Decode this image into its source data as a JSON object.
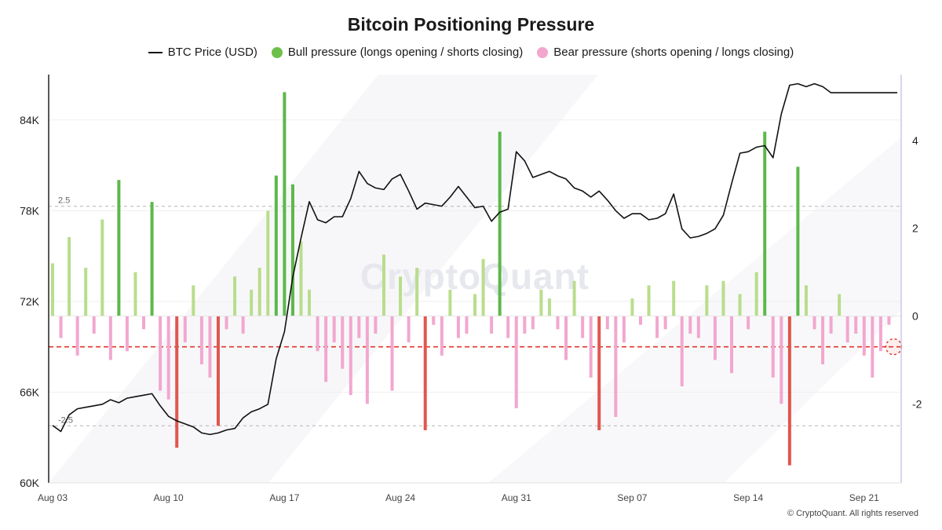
{
  "chart_data": {
    "type": "line+bar",
    "title": "Bitcoin Positioning Pressure",
    "legend": [
      {
        "name": "BTC Price (USD)",
        "kind": "line",
        "color": "#111111"
      },
      {
        "name": "Bull pressure (longs opening / shorts closing)",
        "kind": "dot",
        "color": "#6cc04a"
      },
      {
        "name": "Bear pressure (shorts opening / longs closing)",
        "kind": "dot",
        "color": "#f2a7cf"
      }
    ],
    "x_ticks": [
      "Aug 03",
      "Aug 10",
      "Aug 17",
      "Aug 24",
      "Aug 31",
      "Sep 07",
      "Sep 14",
      "Sep 21"
    ],
    "x_range": [
      0,
      51
    ],
    "y_left": {
      "ticks": [
        "60K",
        "66K",
        "72K",
        "78K",
        "84K"
      ],
      "values": [
        60000,
        66000,
        72000,
        78000,
        84000
      ],
      "range": [
        60000,
        87000
      ]
    },
    "y_right": {
      "ticks": [
        "-2",
        "0",
        "2",
        "4"
      ],
      "values": [
        -2,
        0,
        2,
        4
      ],
      "range": [
        -3.8,
        5.5
      ]
    },
    "reference_lines": [
      {
        "value": 2.5,
        "label": "2.5"
      },
      {
        "value": -2.5,
        "label": "-2.5"
      },
      {
        "value": -0.7,
        "label": ""
      }
    ],
    "price": {
      "name": "BTC Price (USD)",
      "x": [
        0,
        0.5,
        1,
        1.5,
        2,
        2.5,
        3,
        3.5,
        4,
        4.5,
        5,
        5.5,
        6,
        6.5,
        7,
        7.5,
        8,
        8.5,
        9,
        9.5,
        10,
        10.5,
        11,
        11.5,
        12,
        12.5,
        13,
        13.5,
        14,
        14.5,
        15,
        15.5,
        16,
        16.5,
        17,
        17.5,
        18,
        18.5,
        19,
        19.5,
        20,
        20.5,
        21,
        21.5,
        22,
        22.5,
        23,
        23.5,
        24,
        24.5,
        25,
        25.5,
        26,
        26.5,
        27,
        27.5,
        28,
        28.5,
        29,
        29.5,
        30,
        30.5,
        31,
        31.5,
        32,
        32.5,
        33,
        33.5,
        34,
        34.5,
        35,
        35.5,
        36,
        36.5,
        37,
        37.5,
        38,
        38.5,
        39,
        39.5,
        40,
        40.5,
        41,
        41.5,
        42,
        42.5,
        43,
        43.5,
        44,
        44.5,
        45,
        45.5,
        46,
        46.5,
        47,
        47.5,
        48,
        48.5,
        49,
        49.5,
        50,
        50.5,
        51
      ],
      "y": [
        63800,
        63400,
        64500,
        64900,
        65000,
        65100,
        65200,
        65500,
        65300,
        65600,
        65700,
        65800,
        65900,
        65100,
        64400,
        64100,
        63900,
        63700,
        63300,
        63200,
        63300,
        63500,
        63600,
        64300,
        64700,
        64900,
        65200,
        68200,
        70000,
        73600,
        76200,
        78600,
        77400,
        77200,
        77600,
        77600,
        78800,
        80600,
        79800,
        79500,
        79400,
        80100,
        80400,
        79300,
        78100,
        78500,
        78400,
        78300,
        78900,
        79600,
        78900,
        78200,
        78300,
        77300,
        77900,
        78100,
        81900,
        81300,
        80200,
        80400,
        80600,
        80300,
        80100,
        79500,
        79300,
        78900,
        79300,
        78700,
        78000,
        77500,
        77800,
        77800,
        77400,
        77500,
        77800,
        79100,
        76800,
        76200,
        76300,
        76500,
        76800,
        77700,
        79800,
        81800,
        81900,
        82200,
        82300,
        81500,
        84400,
        86300,
        86400,
        86200,
        86400,
        86200,
        85800,
        85800,
        85800,
        85800,
        85800,
        85800,
        85800,
        85800,
        85800
      ]
    },
    "pressure": {
      "x": [
        0,
        0.5,
        1,
        1.5,
        2,
        2.5,
        3,
        3.5,
        4,
        4.5,
        5,
        5.5,
        6,
        6.5,
        7,
        7.5,
        8,
        8.5,
        9,
        9.5,
        10,
        10.5,
        11,
        11.5,
        12,
        12.5,
        13,
        13.5,
        14,
        14.5,
        15,
        15.5,
        16,
        16.5,
        17,
        17.5,
        18,
        18.5,
        19,
        19.5,
        20,
        20.5,
        21,
        21.5,
        22,
        22.5,
        23,
        23.5,
        24,
        24.5,
        25,
        25.5,
        26,
        26.5,
        27,
        27.5,
        28,
        28.5,
        29,
        29.5,
        30,
        30.5,
        31,
        31.5,
        32,
        32.5,
        33,
        33.5,
        34,
        34.5,
        35,
        35.5,
        36,
        36.5,
        37,
        37.5,
        38,
        38.5,
        39,
        39.5,
        40,
        40.5,
        41,
        41.5,
        42,
        42.5,
        43,
        43.5,
        44,
        44.5,
        45,
        45.5,
        46,
        46.5,
        47,
        47.5,
        48,
        48.5,
        49,
        49.5,
        50,
        50.5
      ],
      "y": [
        1.2,
        -0.5,
        1.8,
        -0.9,
        1.1,
        -0.4,
        2.2,
        -1.0,
        3.1,
        -0.8,
        1.0,
        -0.3,
        2.6,
        -1.7,
        -1.9,
        -3.0,
        -0.6,
        0.7,
        -1.1,
        -1.4,
        -2.5,
        -0.3,
        0.9,
        -0.4,
        0.6,
        1.1,
        2.4,
        3.2,
        5.1,
        3.0,
        1.7,
        0.6,
        -0.8,
        -1.5,
        -0.6,
        -1.2,
        -1.8,
        -0.5,
        -2.0,
        -0.4,
        1.4,
        -1.7,
        0.9,
        -0.6,
        1.1,
        -2.6,
        -0.2,
        -0.9,
        0.6,
        -0.5,
        -0.4,
        0.5,
        1.3,
        -0.4,
        4.2,
        -0.5,
        -2.1,
        -0.4,
        -0.3,
        0.6,
        0.4,
        -0.3,
        -1.0,
        0.8,
        -0.5,
        -1.4,
        -2.6,
        -0.3,
        -2.3,
        -0.6,
        0.4,
        -0.2,
        0.7,
        -0.5,
        -0.3,
        0.8,
        -1.6,
        -0.4,
        -0.5,
        0.7,
        -1.0,
        0.8,
        -1.3,
        0.5,
        -0.3,
        1.0,
        4.2,
        -1.4,
        -2.0,
        -3.4,
        3.4,
        0.7,
        -0.3,
        -1.1,
        -0.4,
        0.5,
        -0.6,
        -0.4,
        -0.9,
        -1.4,
        -0.8,
        -0.2
      ],
      "bull_color": "#b9dd8c",
      "bull_strong_color": "#5cb84a",
      "bear_color": "#f2a7cf",
      "bear_strong_color": "#e0564f"
    },
    "watermark": "CryptoQuant",
    "grid": true
  },
  "footer": "© CryptoQuant. All rights reserved"
}
